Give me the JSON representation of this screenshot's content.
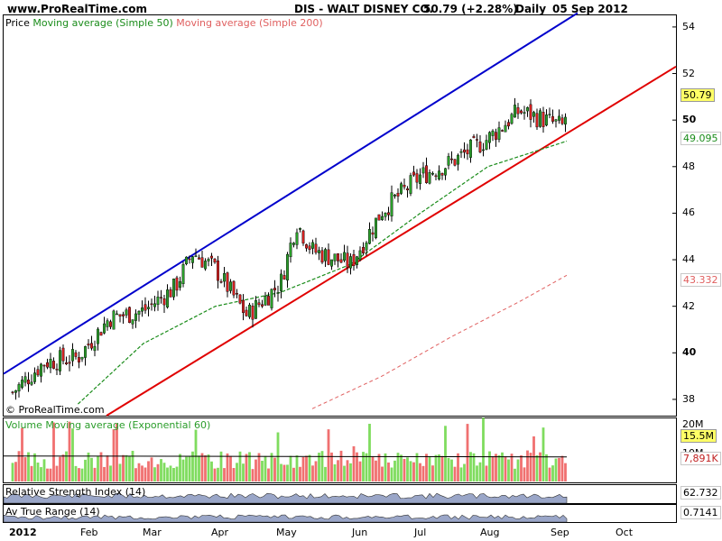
{
  "header": {
    "site": "www.ProRealTime.com",
    "title": "DIS - WALT DISNEY CO.",
    "last": "50.79 (+2.28%)",
    "period": "Daily",
    "date": "05 Sep 2012"
  },
  "price_panel": {
    "legend_price": "Price",
    "legend_ma50": "Moving average (Simple 50)",
    "legend_ma200": "Moving average (Simple 200)",
    "watermark": "© ProRealTime.com",
    "tags": {
      "last": "50.79",
      "ma50": "49.095",
      "ma200": "43.332"
    }
  },
  "volume_panel": {
    "legend_volume": "Volume",
    "legend_ma": "Moving average (Exponential 60)",
    "tags": {
      "last": "15.5M",
      "ma": "7,891K"
    }
  },
  "rsi_panel": {
    "label": "Relative Strength Index (14)",
    "tag": "62.732"
  },
  "atr_panel": {
    "label": "Av True Range (14)",
    "tag": "0.7141"
  },
  "x_axis": {
    "year": "2012",
    "months": [
      "Feb",
      "Mar",
      "Apr",
      "May",
      "Jun",
      "Jul",
      "Aug",
      "Sep",
      "Oct"
    ]
  },
  "colors": {
    "up": "#2a9d2a",
    "down": "#d02020",
    "ma50": "#1a8c1a",
    "ma200": "#e06060",
    "upper_channel": "#0000cc",
    "lower_channel": "#e00000",
    "vol_up": "#7fdc5f",
    "vol_down": "#f07070"
  },
  "chart_data": [
    {
      "type": "line",
      "title": "DIS - WALT DISNEY CO.",
      "ylim": [
        37.3,
        54.5
      ],
      "y_ticks": [
        38,
        40,
        42,
        44,
        46,
        48,
        50,
        52,
        54
      ],
      "x_ticks": [
        "2012",
        "Feb",
        "Mar",
        "Apr",
        "May",
        "Jun",
        "Jul",
        "Aug",
        "Sep",
        "Oct"
      ],
      "series": [
        {
          "name": "Price",
          "dates": [
            "Jan 3",
            "Jan 17",
            "Feb 1",
            "Feb 15",
            "Mar 1",
            "Mar 15",
            "Mar 23",
            "Apr 2",
            "Apr 16",
            "May 1",
            "May 8",
            "May 15",
            "Jun 1",
            "Jun 15",
            "Jul 2",
            "Jul 16",
            "Aug 1",
            "Aug 15",
            "Sep 4",
            "Sep 5"
          ],
          "values": [
            38.3,
            39.6,
            39.8,
            41.5,
            41.8,
            42.8,
            44.3,
            43.6,
            41.6,
            43.0,
            45.6,
            44.4,
            43.8,
            46.1,
            47.6,
            48.2,
            49.2,
            50.4,
            49.7,
            50.79
          ]
        },
        {
          "name": "Moving average (Simple 50)",
          "dates": [
            "Feb 1",
            "Mar 1",
            "Apr 2",
            "May 1",
            "Jun 1",
            "Jul 2",
            "Aug 1",
            "Sep 5"
          ],
          "values": [
            37.8,
            40.4,
            42.0,
            42.6,
            43.8,
            46.0,
            48.0,
            49.095
          ]
        },
        {
          "name": "Moving average (Simple 200)",
          "dates": [
            "May 15",
            "Jun 15",
            "Jul 16",
            "Aug 15",
            "Sep 5"
          ],
          "values": [
            37.6,
            39.0,
            40.7,
            42.2,
            43.332
          ]
        }
      ]
    },
    {
      "type": "bar",
      "title": "Volume",
      "ylim": [
        0,
        20
      ],
      "y_ticks": [
        "20M",
        "10M"
      ],
      "last_value": "15.5M",
      "moving_average_last": "7,891K"
    },
    {
      "type": "area",
      "title": "Relative Strength Index (14)",
      "last_value": 62.732
    },
    {
      "type": "area",
      "title": "Av True Range (14)",
      "last_value": 0.7141
    }
  ]
}
